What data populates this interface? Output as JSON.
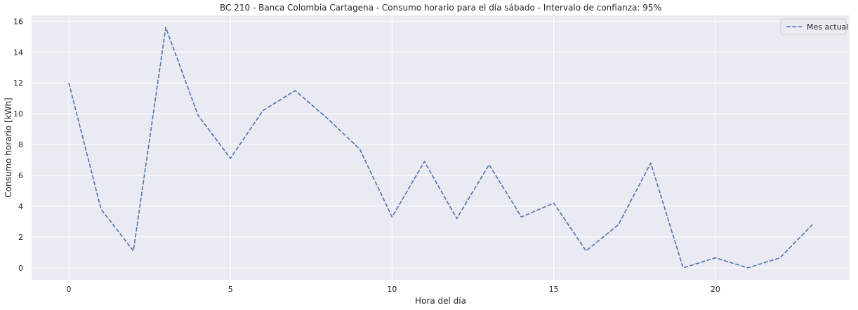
{
  "chart_data": {
    "type": "line",
    "title": "BC 210 - Banca Colombia Cartagena - Consumo horario para el día sábado - Intervalo de confianza: 95%",
    "xlabel": "Hora del día",
    "ylabel": "Consumo horario [kWh]",
    "x": [
      0,
      1,
      2,
      3,
      4,
      5,
      6,
      7,
      8,
      9,
      10,
      11,
      12,
      13,
      14,
      15,
      16,
      17,
      18,
      19,
      20,
      21,
      22,
      23
    ],
    "series": [
      {
        "name": "Mes actual",
        "values": [
          12.0,
          3.8,
          1.1,
          15.6,
          9.9,
          7.1,
          10.2,
          11.5,
          9.7,
          7.7,
          3.3,
          6.9,
          3.2,
          6.7,
          3.3,
          4.2,
          1.1,
          2.8,
          6.8,
          0.0,
          0.65,
          0.0,
          0.65,
          2.8
        ],
        "style": "dashed",
        "color": "#4c72b0"
      }
    ],
    "xlim": [
      -1.15,
      24.15
    ],
    "ylim": [
      -0.78,
      16.38
    ],
    "xticks": [
      "0",
      "5",
      "10",
      "15",
      "20"
    ],
    "xtick_values": [
      0,
      5,
      10,
      15,
      20
    ],
    "yticks": [
      "0",
      "2",
      "4",
      "6",
      "8",
      "10",
      "12",
      "14",
      "16"
    ],
    "ytick_values": [
      0,
      2,
      4,
      6,
      8,
      10,
      12,
      14,
      16
    ],
    "grid": true,
    "legend": "top-right",
    "background": "#eaeaf2",
    "grid_color": "#ffffff"
  }
}
